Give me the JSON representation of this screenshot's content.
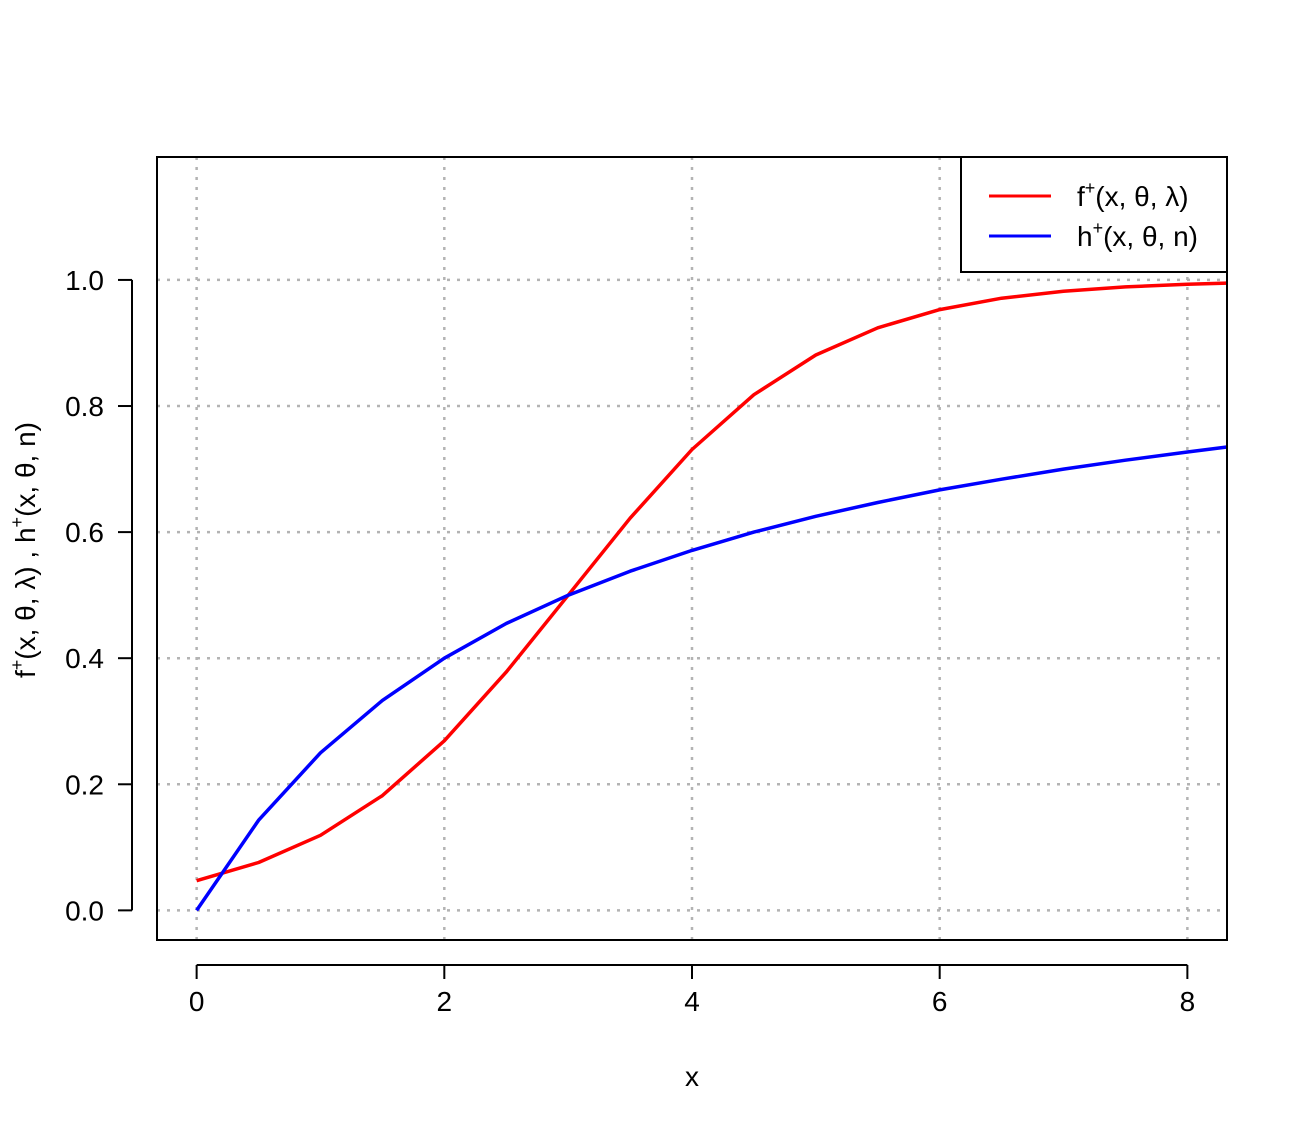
{
  "chart_data": {
    "type": "line",
    "title": "",
    "xlabel": "x",
    "ylabel": {
      "f_base": "f",
      "f_sup": "+",
      "f_args": "(x, θ, λ) , ",
      "h_base": "h",
      "h_sup": "+",
      "h_args": "(x, θ, n)"
    },
    "xlim": [
      -0.32,
      8.32
    ],
    "ylim": [
      -0.047,
      1.195
    ],
    "x_ticks": [
      0,
      2,
      4,
      6,
      8
    ],
    "x_tick_labels": [
      "0",
      "2",
      "4",
      "6",
      "8"
    ],
    "y_ticks": [
      0.0,
      0.2,
      0.4,
      0.6,
      0.8,
      1.0
    ],
    "y_tick_labels": [
      "0.0",
      "0.2",
      "0.4",
      "0.6",
      "0.8",
      "1.0"
    ],
    "grid": true,
    "legend_position": "top-right",
    "series": [
      {
        "name_base": "f",
        "name_sup": "+",
        "name_args": "(x, θ, λ)",
        "color": "#ff0000",
        "x": [
          0,
          0.5,
          1,
          1.5,
          2,
          2.5,
          3,
          3.5,
          4,
          4.5,
          5,
          5.5,
          6,
          6.5,
          7,
          7.5,
          8,
          8.32
        ],
        "y": [
          0.047,
          0.076,
          0.119,
          0.182,
          0.269,
          0.378,
          0.5,
          0.622,
          0.731,
          0.818,
          0.881,
          0.924,
          0.953,
          0.971,
          0.982,
          0.989,
          0.993,
          0.995
        ]
      },
      {
        "name_base": "h",
        "name_sup": "+",
        "name_args": "(x, θ, n)",
        "color": "#0000ff",
        "x": [
          0,
          0.5,
          1,
          1.5,
          2,
          2.5,
          3,
          3.5,
          4,
          4.5,
          5,
          5.5,
          6,
          6.5,
          7,
          7.5,
          8,
          8.32
        ],
        "y": [
          0.0,
          0.143,
          0.25,
          0.333,
          0.4,
          0.455,
          0.5,
          0.538,
          0.571,
          0.6,
          0.625,
          0.647,
          0.667,
          0.684,
          0.7,
          0.714,
          0.727,
          0.735
        ]
      }
    ]
  }
}
